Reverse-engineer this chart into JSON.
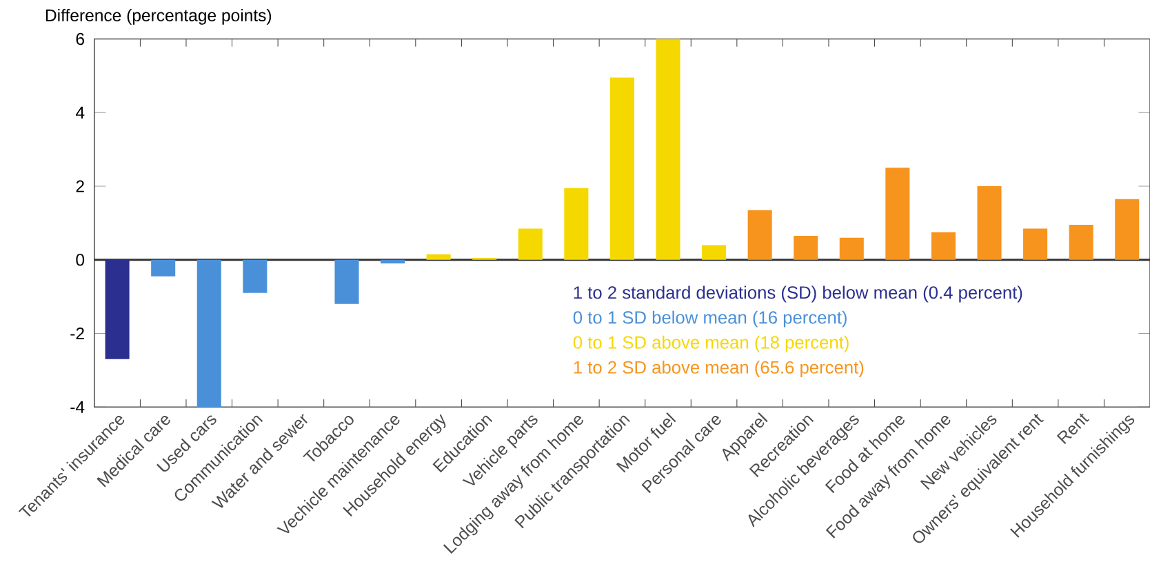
{
  "chart_data": {
    "type": "bar",
    "ylabel": "Difference (percentage points)",
    "categories": [
      "Tenants' insurance",
      "Medical care",
      "Used cars",
      "Communication",
      "Water and sewer",
      "Tobacco",
      "Vechicle maintenance",
      "Household energy",
      "Education",
      "Vehicle parts",
      "Lodging away from home",
      "Public transportation",
      "Motor fuel",
      "Personal care",
      "Apparel",
      "Recreation",
      "Alcoholic beverages",
      "Food at home",
      "Food away from home",
      "New vehicles",
      "Owners' equivalent rent",
      "Rent",
      "Household furnishings"
    ],
    "series": [
      {
        "name": "1 to 2 standard deviations (SD) below mean (0.4 percent)",
        "color": "#2b2f8f",
        "values": [
          -2.7,
          null,
          null,
          null,
          null,
          null,
          null,
          null,
          null,
          null,
          null,
          null,
          null,
          null,
          null,
          null,
          null,
          null,
          null,
          null,
          null,
          null,
          null
        ]
      },
      {
        "name": "0 to 1 SD below mean (16 percent)",
        "color": "#4a90d9",
        "values": [
          null,
          -0.45,
          -4.0,
          -0.9,
          0,
          -1.2,
          -0.1,
          null,
          null,
          null,
          null,
          null,
          null,
          null,
          null,
          null,
          null,
          null,
          null,
          null,
          null,
          null,
          null
        ]
      },
      {
        "name": "0 to 1 SD above mean (18 percent)",
        "color": "#f5d800",
        "values": [
          null,
          null,
          null,
          null,
          null,
          null,
          null,
          0.15,
          0.05,
          0.85,
          1.95,
          4.95,
          6.0,
          0.4,
          null,
          null,
          null,
          null,
          null,
          null,
          null,
          null,
          null
        ]
      },
      {
        "name": "1 to 2 SD above mean (65.6 percent)",
        "color": "#f7941d",
        "values": [
          null,
          null,
          null,
          null,
          null,
          null,
          null,
          null,
          null,
          null,
          null,
          null,
          null,
          null,
          1.35,
          0.65,
          0.6,
          2.5,
          0.75,
          2.0,
          0.85,
          0.95,
          1.65
        ]
      }
    ],
    "ylim": [
      -4,
      6
    ],
    "yticks": [
      -4,
      -2,
      0,
      2,
      4,
      6
    ],
    "ref_lines": [
      {
        "axis": "y",
        "value": 0
      }
    ],
    "legend": "right"
  }
}
